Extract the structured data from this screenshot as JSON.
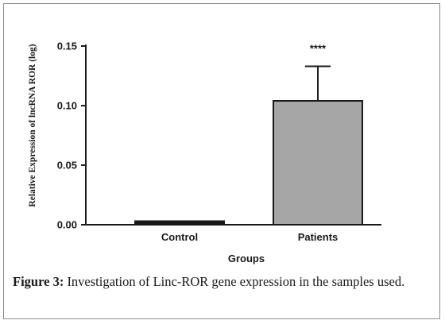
{
  "chart_data": {
    "type": "bar",
    "categories": [
      "Control",
      "Patients"
    ],
    "values": [
      0.003,
      0.104
    ],
    "error_upper": [
      0.0005,
      0.133
    ],
    "bar_colors": [
      "#1a1a1a",
      "#a6a6a6"
    ],
    "significance": [
      "",
      "****"
    ],
    "ylabel": "Relative Expression of lncRNA ROR (log)",
    "xlabel": "Groups",
    "ylim": [
      0,
      0.15
    ],
    "yticks": [
      "0.00",
      "0.05",
      "0.10",
      "0.15"
    ],
    "grid": false
  },
  "caption": {
    "label": "Figure 3:",
    "text": " Investigation of Linc-ROR gene expression in the samples used."
  }
}
